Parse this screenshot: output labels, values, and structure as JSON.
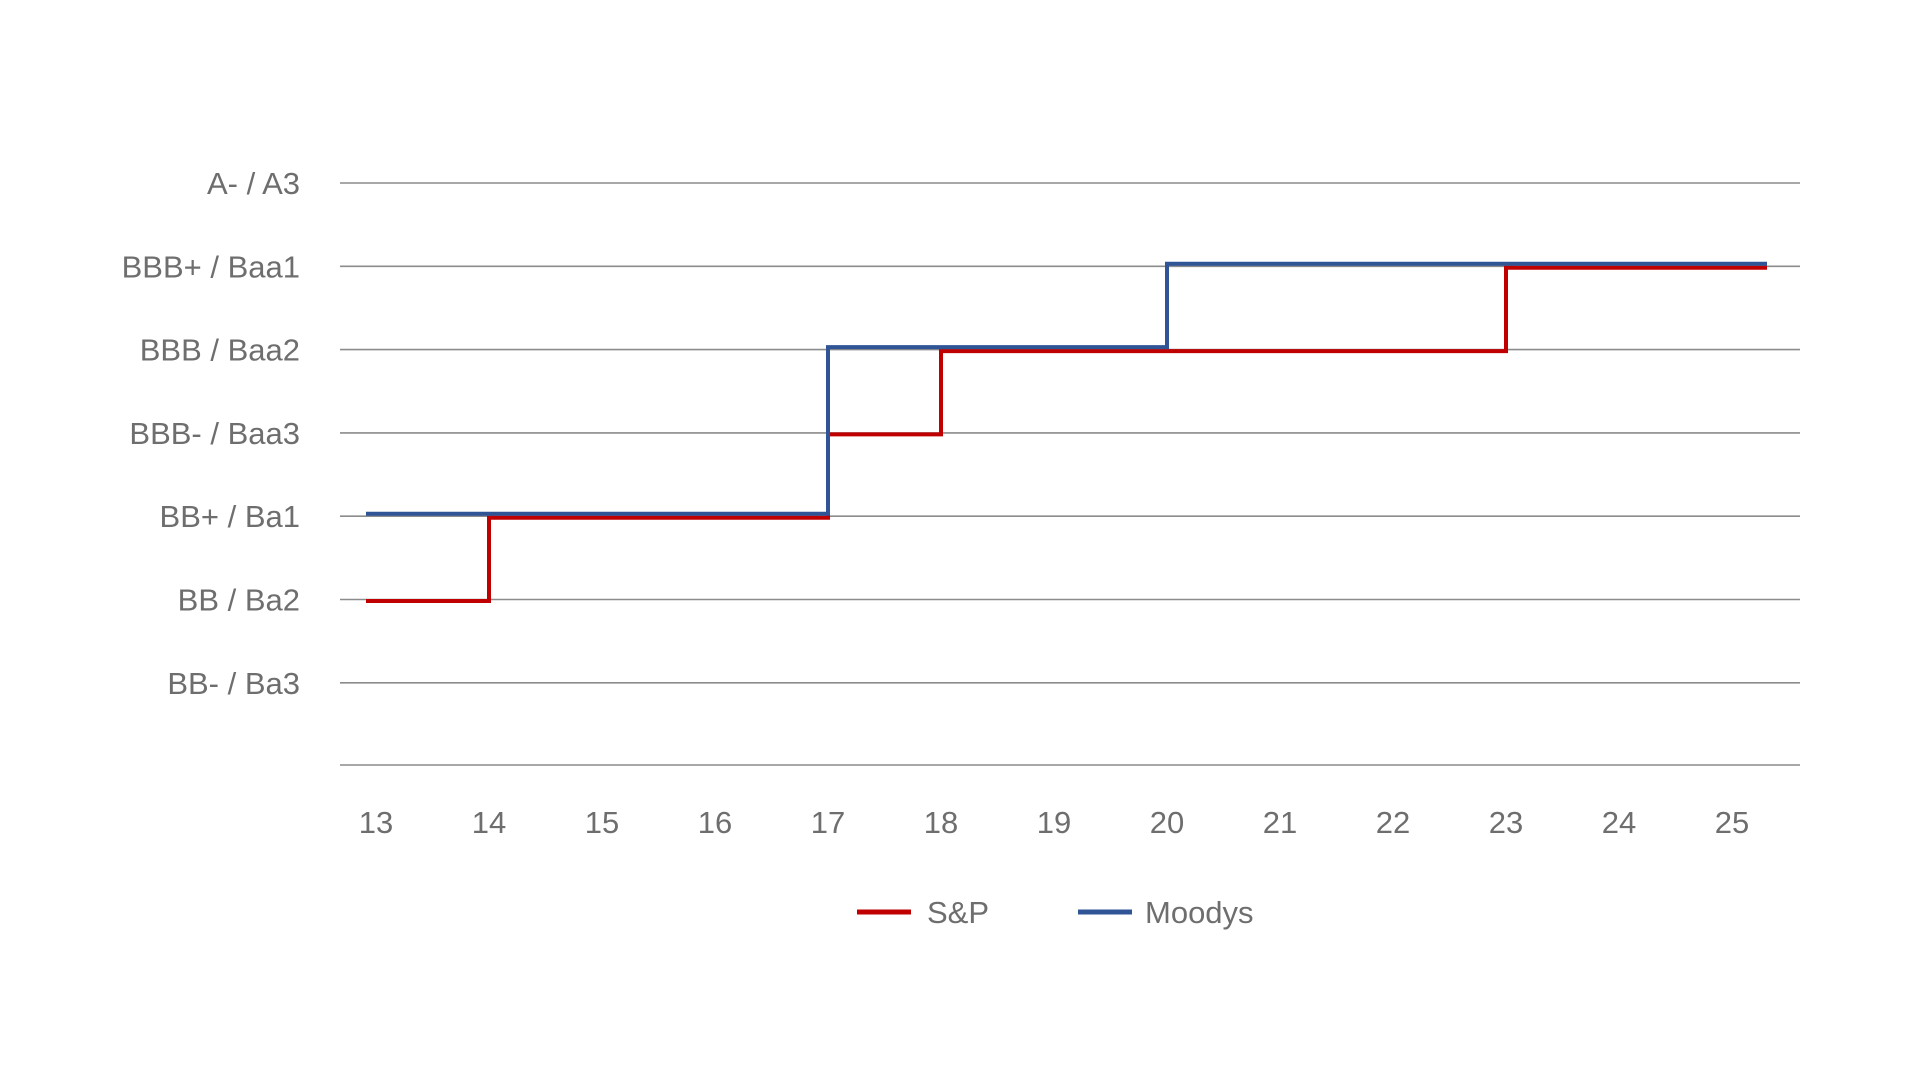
{
  "chart_data": {
    "type": "line",
    "step": true,
    "title": "",
    "xlabel": "",
    "ylabel": "",
    "x": [
      13,
      14,
      15,
      16,
      17,
      18,
      19,
      20,
      21,
      22,
      23,
      24,
      25
    ],
    "x_tick_labels": [
      "13",
      "14",
      "15",
      "16",
      "17",
      "18",
      "19",
      "20",
      "21",
      "22",
      "23",
      "24",
      "25"
    ],
    "y_categories": [
      "BB- / Ba3",
      "BB / Ba2",
      "BB+ / Ba1",
      "BBB- / Baa3",
      "BBB / Baa2",
      "BBB+ / Baa1",
      "A- / A3"
    ],
    "y_tick_labels": [
      "A- / A3",
      "BBB+ / Baa1",
      "BBB / Baa2",
      "BBB- / Baa3",
      "BB+ / Ba1",
      "BB / Ba2",
      "BB- / Ba3"
    ],
    "grid": true,
    "legend_position": "bottom-center",
    "series": [
      {
        "name": "S&P",
        "color": "#c00000",
        "values": [
          "BB / Ba2",
          "BB+ / Ba1",
          "BB+ / Ba1",
          "BB+ / Ba1",
          "BBB- / Baa3",
          "BBB / Baa2",
          "BBB / Baa2",
          "BBB / Baa2",
          "BBB / Baa2",
          "BBB / Baa2",
          "BBB+ / Baa1",
          "BBB+ / Baa1",
          "BBB+ / Baa1"
        ]
      },
      {
        "name": "Moodys",
        "color": "#2f5597",
        "values": [
          "BB+ / Ba1",
          "BB+ / Ba1",
          "BB+ / Ba1",
          "BB+ / Ba1",
          "BBB / Baa2",
          "BBB / Baa2",
          "BBB / Baa2",
          "BBB+ / Baa1",
          "BBB+ / Baa1",
          "BBB+ / Baa1",
          "BBB+ / Baa1",
          "BBB+ / Baa1",
          "BBB+ / Baa1"
        ]
      }
    ],
    "colors": {
      "grid": "#8c8c8c",
      "text": "#6e6e6e"
    }
  }
}
